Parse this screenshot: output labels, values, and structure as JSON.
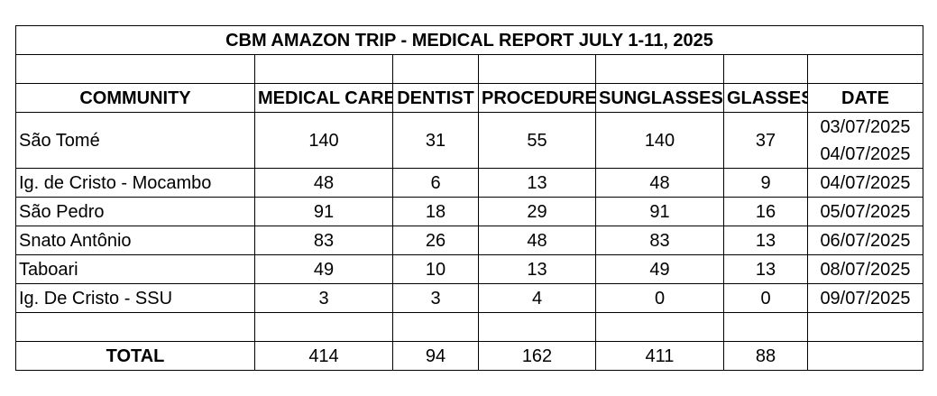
{
  "title": "CBM AMAZON TRIP  - MEDICAL REPORT JULY 1-11, 2025",
  "headers": [
    "COMMUNITY",
    "MEDICAL CARE",
    "DENTIST",
    "PROCEDURE",
    "SUNGLASSES",
    "GLASSES",
    "DATE"
  ],
  "rows": [
    {
      "community": "São Tomé",
      "medical_care": "140",
      "dentist": "31",
      "procedure": "55",
      "sunglasses": "140",
      "glasses": "37",
      "dates": [
        "03/07/2025",
        "04/07/2025"
      ]
    },
    {
      "community": "Ig. de Cristo - Mocambo",
      "medical_care": "48",
      "dentist": "6",
      "procedure": "13",
      "sunglasses": "48",
      "glasses": "9",
      "dates": [
        "04/07/2025"
      ]
    },
    {
      "community": "São Pedro",
      "medical_care": "91",
      "dentist": "18",
      "procedure": "29",
      "sunglasses": "91",
      "glasses": "16",
      "dates": [
        "05/07/2025"
      ]
    },
    {
      "community": "Snato Antônio",
      "medical_care": "83",
      "dentist": "26",
      "procedure": "48",
      "sunglasses": "83",
      "glasses": "13",
      "dates": [
        "06/07/2025"
      ]
    },
    {
      "community": "Taboari",
      "medical_care": "49",
      "dentist": "10",
      "procedure": "13",
      "sunglasses": "49",
      "glasses": "13",
      "dates": [
        "08/07/2025"
      ]
    },
    {
      "community": "Ig. De Cristo - SSU",
      "medical_care": "3",
      "dentist": "3",
      "procedure": "4",
      "sunglasses": "0",
      "glasses": "0",
      "dates": [
        "09/07/2025"
      ]
    }
  ],
  "total": {
    "label": "TOTAL",
    "medical_care": "414",
    "dentist": "94",
    "procedure": "162",
    "sunglasses": "411",
    "glasses": "88",
    "date": ""
  }
}
